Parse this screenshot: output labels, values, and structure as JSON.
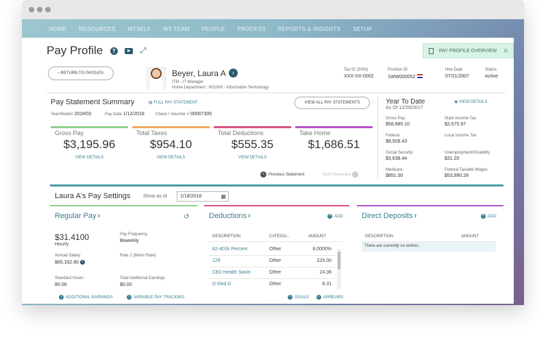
{
  "nav": [
    "HOME",
    "RESOURCES",
    "MYSELF",
    "MY TEAM",
    "PEOPLE",
    "PROCESS",
    "REPORTS & INSIGHTS",
    "SETUP"
  ],
  "page": {
    "title": "Pay Profile",
    "overview_label": "PAY PROFILE OVERVIEW",
    "return_label": "‹ RETURN TO PAYDATA"
  },
  "employee": {
    "name": "Beyer, Laura A",
    "role": "ITM - IT Manager",
    "department": "Home Department : 601000 - Information Technology",
    "tax_id_label": "Tax ID (SSN)",
    "tax_id": "XXX-XX-0002",
    "position_id_label": "Position ID",
    "position_id": "1WW000052",
    "hire_date_label": "Hire Date",
    "hire_date": "07/21/2007",
    "status_label": "Status",
    "status": "Active"
  },
  "summary": {
    "title": "Pay Statement Summary",
    "full_statement": "FULL PAY STATEMENT",
    "view_all": "VIEW ALL PAY STATEMENTS",
    "year_week_label": "Year/Week#",
    "year_week": "2018/02",
    "pay_date_label": "Pay Date",
    "pay_date": "1/12/2018",
    "check_label": "Check / Voucher #",
    "check": "00007305",
    "cards": [
      {
        "label": "Gross Pay",
        "value": "$3,195.96",
        "link": "VIEW DETAILS",
        "color": "#8fd18a"
      },
      {
        "label": "Total Taxes",
        "value": "$954.10",
        "link": "VIEW DETAILS",
        "color": "#f0a860"
      },
      {
        "label": "Total Deductions",
        "value": "$555.35",
        "link": "VIEW DETAILS",
        "color": "#d9517f"
      },
      {
        "label": "Take Home",
        "value": "$1,686.51",
        "link": "",
        "color": "#b453c9"
      }
    ],
    "prev": "Previous Statement",
    "next": "Next Statement"
  },
  "ytd": {
    "title": "Year To Date",
    "as_of": "As Of 12/26/2017",
    "view_details": "VIEW DETAILS",
    "items": [
      {
        "label": "Gross Pay",
        "value": "$58,685.10"
      },
      {
        "label": "State Income Tax",
        "value": "$2,675.97"
      },
      {
        "label": "Federal",
        "value": "$8,926.43"
      },
      {
        "label": "Local Income Tax",
        "value": ""
      },
      {
        "label": "Social Security",
        "value": "$3,638.44"
      },
      {
        "label": "Unemployment/Disability",
        "value": "$31.20"
      },
      {
        "label": "Medicare",
        "value": "$851.00"
      },
      {
        "label": "Federal Taxable Wages",
        "value": "$53,990.28"
      }
    ]
  },
  "settings": {
    "title": "Laura A's Pay Settings",
    "show_as_of": "Show as of",
    "date": "1/18/2018"
  },
  "regular_pay": {
    "title": "Regular Pay",
    "rate": "$31.4100",
    "rate_type": "Hourly",
    "freq_label": "Pay Frequency",
    "freq": "Biweekly",
    "annual_label": "Annual Salary",
    "annual": "$65,332.80",
    "rate2_label": "Rate 2 (Minor Rate)",
    "std_hours_label": "Standard Hours",
    "std_hours": "80.00",
    "addl_label": "Total Additional Earnings",
    "addl": "$0.00",
    "link1": "ADDITIONAL EARNINGS",
    "link2": "VARIABLE PAY TRACKING"
  },
  "deductions": {
    "title": "Deductions",
    "add": "ADD",
    "headers": [
      "DESCRIPTION",
      "CATEGO...",
      "AMOUNT"
    ],
    "rows": [
      [
        "82-401k Percent",
        "Other",
        "8.0000%"
      ],
      [
        "129",
        "Other",
        "225.00"
      ],
      [
        "CB1-Health Savin",
        "Other",
        "24.36"
      ],
      [
        "D-Ded D",
        "Other",
        "8.31"
      ]
    ],
    "goals": "GOALS",
    "arrears": "ARREARS"
  },
  "direct_deposits": {
    "title": "Direct Deposits",
    "add": "ADD",
    "headers": [
      "DESCRIPTION",
      "AMOUNT"
    ],
    "empty": "There are currently no entries."
  }
}
